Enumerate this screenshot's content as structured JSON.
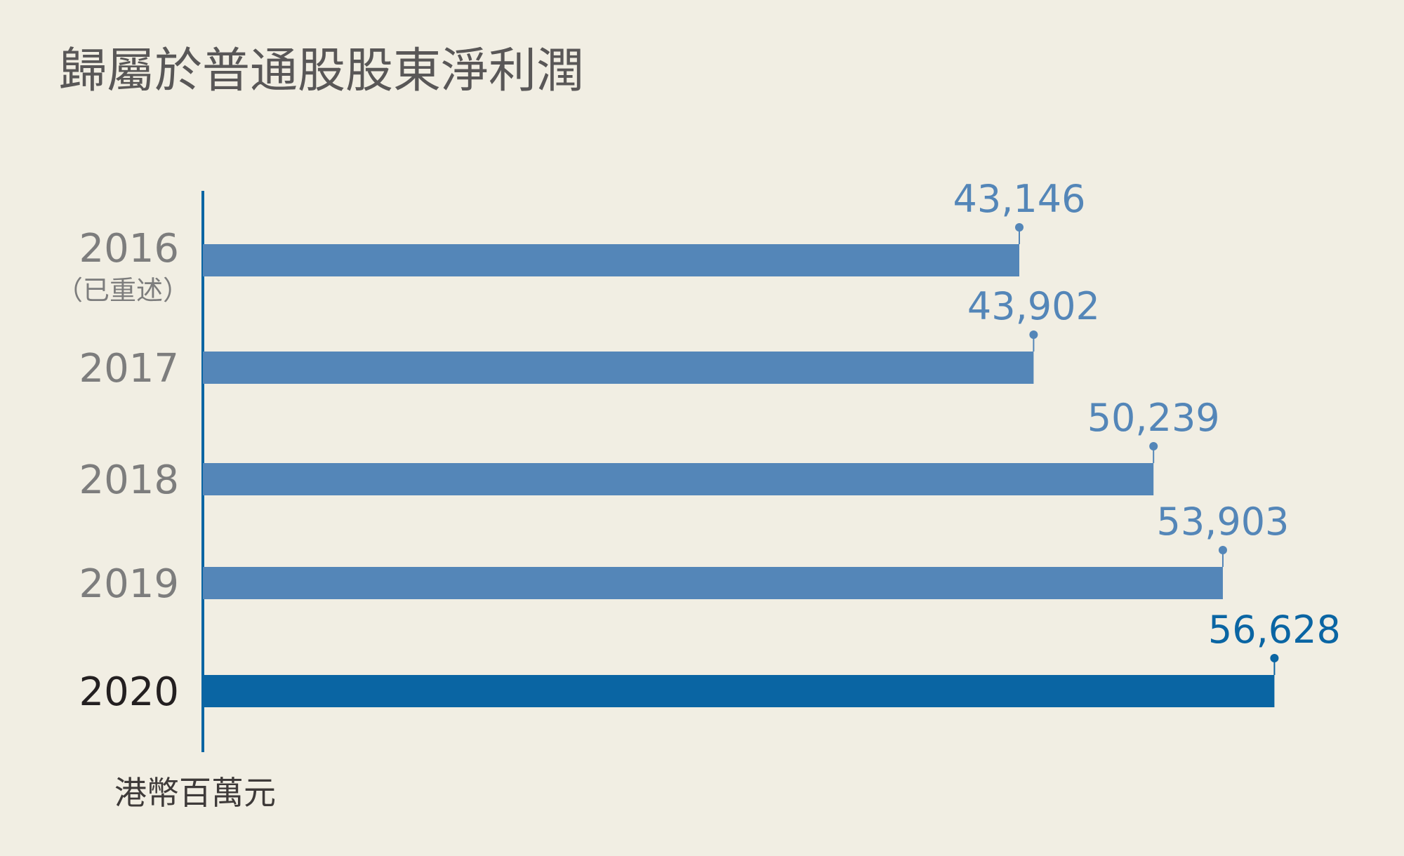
{
  "chart_data": {
    "type": "bar",
    "orientation": "horizontal",
    "title": "歸屬於普通股股東淨利潤",
    "unit_label": "港幣百萬元",
    "categories": [
      "2016",
      "2017",
      "2018",
      "2019",
      "2020"
    ],
    "category_notes": [
      "（已重述）",
      "",
      "",
      "",
      ""
    ],
    "values": [
      43146,
      43902,
      50239,
      53903,
      56628
    ],
    "value_labels": [
      "43,146",
      "43,902",
      "50,239",
      "53,903",
      "56,628"
    ],
    "highlight_category": "2020",
    "colors": {
      "bar": "#5486b8",
      "highlight_bar": "#0a65a3",
      "axis": "#0a65a3",
      "background": "#f1eee3"
    },
    "xlim": [
      0,
      60000
    ],
    "grid": false,
    "legend": "none"
  }
}
